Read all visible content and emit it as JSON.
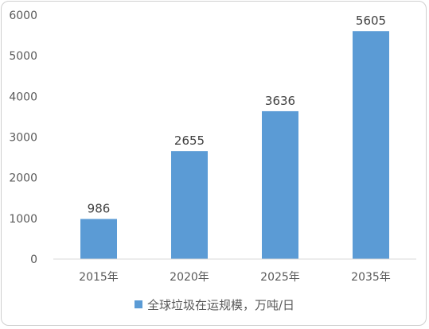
{
  "chart_data": {
    "type": "bar",
    "categories": [
      "2015年",
      "2020年",
      "2025年",
      "2035年"
    ],
    "series": [
      {
        "name": "全球垃圾在运规模，万吨/日",
        "values": [
          986,
          2655,
          3636,
          5605
        ]
      }
    ],
    "data_labels": [
      "986",
      "2655",
      "3636",
      "5605"
    ],
    "yticks": [
      "0",
      "1000",
      "2000",
      "3000",
      "4000",
      "5000",
      "6000"
    ],
    "ylim": [
      0,
      6000
    ],
    "grid": false,
    "legend_position": "bottom",
    "bar_color": "#5b9bd5"
  }
}
